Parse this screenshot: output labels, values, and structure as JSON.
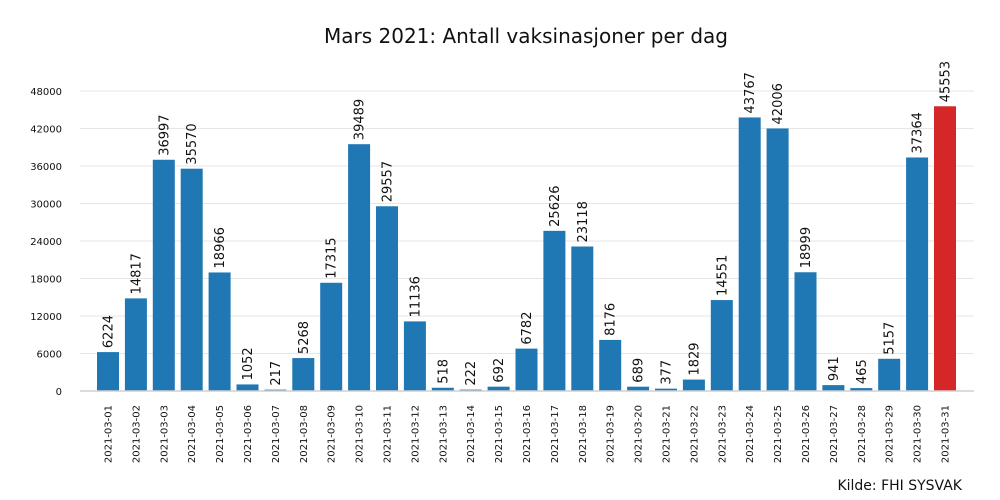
{
  "colors": {
    "bar": "#1f77b4",
    "highlight": "#d62728",
    "grid": "#e6e6e6"
  },
  "chart_data": {
    "type": "bar",
    "title": "Mars 2021: Antall vaksinasjoner per dag",
    "source": "Kilde: FHI SYSVAK",
    "xlabel": "",
    "ylabel": "",
    "ylim": [
      0,
      52000
    ],
    "yticks": [
      0,
      6000,
      12000,
      18000,
      24000,
      30000,
      36000,
      42000,
      48000
    ],
    "grid": true,
    "highlight_index": 30,
    "categories": [
      "2021-03-01",
      "2021-03-02",
      "2021-03-03",
      "2021-03-04",
      "2021-03-05",
      "2021-03-06",
      "2021-03-07",
      "2021-03-08",
      "2021-03-09",
      "2021-03-10",
      "2021-03-11",
      "2021-03-12",
      "2021-03-13",
      "2021-03-14",
      "2021-03-15",
      "2021-03-16",
      "2021-03-17",
      "2021-03-18",
      "2021-03-19",
      "2021-03-20",
      "2021-03-21",
      "2021-03-22",
      "2021-03-23",
      "2021-03-24",
      "2021-03-25",
      "2021-03-26",
      "2021-03-27",
      "2021-03-28",
      "2021-03-29",
      "2021-03-30",
      "2021-03-31"
    ],
    "values": [
      6224,
      14817,
      36997,
      35570,
      18966,
      1052,
      217,
      5268,
      17315,
      39489,
      29557,
      11136,
      518,
      222,
      692,
      6782,
      25626,
      23118,
      8176,
      689,
      377,
      1829,
      14551,
      43767,
      42006,
      18999,
      941,
      465,
      5157,
      37364,
      45553
    ]
  }
}
